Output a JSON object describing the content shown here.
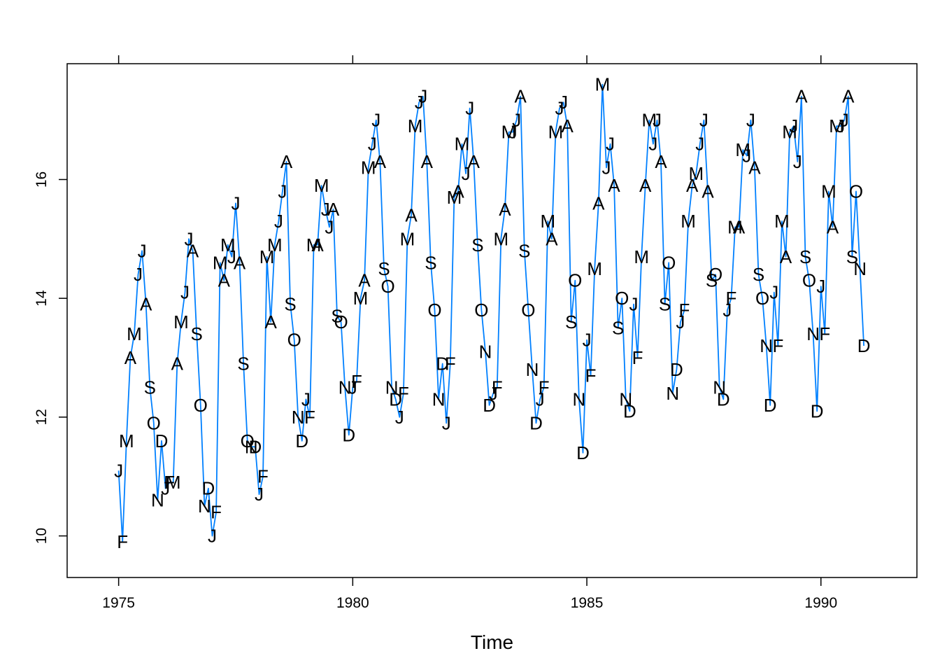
{
  "chart_data": {
    "type": "line",
    "title": "",
    "xlabel": "Time",
    "ylabel": "",
    "xlim": [
      1973.9,
      1992.05
    ],
    "ylim": [
      9.3,
      17.95
    ],
    "x_ticks": [
      1975,
      1980,
      1985,
      1990
    ],
    "y_ticks": [
      10,
      12,
      14,
      16
    ],
    "grid": false,
    "legend": "none",
    "line_color": "#0080ff",
    "start": 1975,
    "frequency": 12,
    "month_codes": [
      "J",
      "F",
      "M",
      "A",
      "M",
      "J",
      "J",
      "A",
      "S",
      "O",
      "N",
      "D"
    ],
    "values": [
      11.1,
      9.9,
      11.6,
      13.0,
      13.4,
      14.4,
      14.8,
      13.9,
      12.5,
      11.9,
      10.6,
      11.6,
      10.8,
      10.9,
      10.9,
      12.9,
      13.6,
      14.1,
      15.0,
      14.8,
      13.4,
      12.2,
      10.5,
      10.8,
      10.0,
      10.4,
      14.6,
      14.3,
      14.9,
      14.7,
      15.6,
      14.6,
      12.9,
      11.6,
      11.5,
      11.5,
      10.7,
      11.0,
      14.7,
      13.6,
      14.9,
      15.3,
      15.8,
      16.3,
      13.9,
      13.3,
      12.0,
      11.6,
      12.3,
      12.0,
      14.9,
      14.9,
      15.9,
      15.5,
      15.2,
      15.5,
      13.7,
      13.6,
      12.5,
      11.7,
      12.5,
      12.6,
      14.0,
      14.3,
      16.2,
      16.6,
      17.0,
      16.3,
      14.5,
      14.2,
      12.5,
      12.3,
      12.0,
      12.4,
      15.0,
      15.4,
      16.9,
      17.3,
      17.4,
      16.3,
      14.6,
      13.8,
      12.3,
      12.9,
      11.9,
      12.9,
      15.7,
      15.8,
      16.6,
      16.1,
      17.2,
      16.3,
      14.9,
      13.8,
      13.1,
      12.2,
      12.4,
      12.5,
      15.0,
      15.5,
      16.8,
      16.8,
      17.0,
      17.4,
      14.8,
      13.8,
      12.8,
      11.9,
      12.3,
      12.5,
      15.3,
      15.0,
      16.8,
      17.2,
      17.3,
      16.9,
      13.6,
      14.3,
      12.3,
      11.4,
      13.3,
      12.7,
      14.5,
      15.6,
      17.6,
      16.2,
      16.6,
      15.9,
      13.5,
      14.0,
      12.3,
      12.1,
      13.9,
      13.0,
      14.7,
      15.9,
      17.0,
      16.6,
      17.0,
      16.3,
      13.9,
      14.6,
      12.4,
      12.8,
      13.6,
      13.8,
      15.3,
      15.9,
      16.1,
      16.6,
      17.0,
      15.8,
      14.3,
      14.4,
      12.5,
      12.3,
      13.8,
      14.0,
      15.2,
      15.2,
      16.5,
      16.4,
      17.0,
      16.2,
      14.4,
      14.0,
      13.2,
      12.2,
      14.1,
      13.2,
      15.3,
      14.7,
      16.8,
      16.9,
      16.3,
      17.4,
      14.7,
      14.3,
      13.4,
      12.1,
      14.2,
      13.4,
      15.8,
      15.2,
      16.9,
      16.9,
      17.0,
      17.4,
      14.7,
      15.8,
      14.5,
      13.2
    ]
  }
}
